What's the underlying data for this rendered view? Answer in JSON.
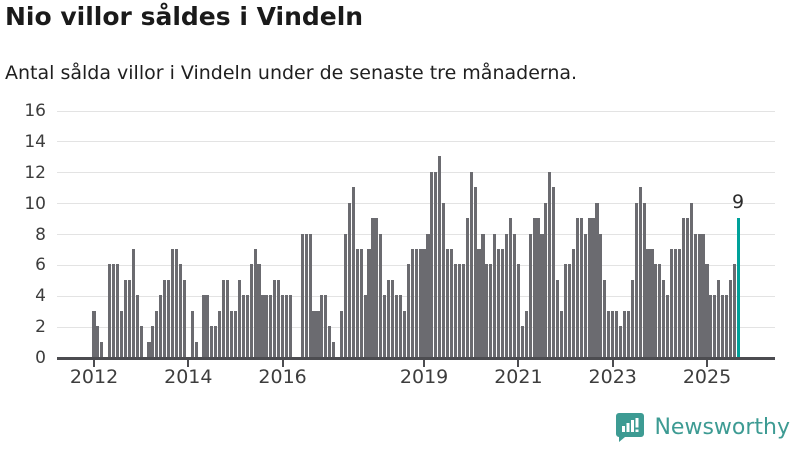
{
  "header": {
    "title": "Nio villor såldes i Vindeln",
    "subtitle": "Antal sålda villor i Vindeln under de senaste tre månaderna."
  },
  "chart_data": {
    "type": "bar",
    "title": "Nio villor såldes i Vindeln",
    "subtitle": "Antal sålda villor i Vindeln under de senaste tre månaderna.",
    "x_start": "2012-01",
    "x_end": "2025-09",
    "x_tick_years": [
      2012,
      2014,
      2016,
      2019,
      2021,
      2023,
      2025
    ],
    "x_tick_labels": [
      "2012",
      "2014",
      "2016",
      "2019",
      "2021",
      "2023",
      "2025"
    ],
    "y_ticks": [
      0,
      2,
      4,
      6,
      8,
      10,
      12,
      14,
      16
    ],
    "ylim": [
      0,
      16
    ],
    "grid": true,
    "bar_color": "#6b6b70",
    "highlight_color": "#00a19a",
    "highlight_last_bar": true,
    "last_value_label": "9",
    "values_by_year": {
      "2012": [
        3,
        2,
        1,
        0,
        6,
        6,
        6,
        3,
        5,
        5,
        7,
        4
      ],
      "2013": [
        2,
        0,
        1,
        2,
        3,
        4,
        5,
        5,
        7,
        7,
        6,
        5
      ],
      "2014": [
        0,
        3,
        1,
        0,
        4,
        4,
        2,
        2,
        3,
        5,
        5,
        3
      ],
      "2015": [
        3,
        5,
        4,
        4,
        6,
        7,
        6,
        4,
        4,
        4,
        5,
        5
      ],
      "2016": [
        4,
        4,
        4,
        0,
        0,
        8,
        8,
        8,
        3,
        3,
        4,
        4
      ],
      "2017": [
        2,
        1,
        0,
        3,
        8,
        10,
        11,
        7,
        7,
        4,
        7,
        9
      ],
      "2018": [
        9,
        8,
        4,
        5,
        5,
        4,
        4,
        3,
        6,
        7,
        7,
        7
      ],
      "2019": [
        7,
        8,
        12,
        12,
        13,
        10,
        7,
        7,
        6,
        6,
        6,
        9
      ],
      "2020": [
        12,
        11,
        7,
        8,
        6,
        6,
        8,
        7,
        7,
        8,
        9,
        8
      ],
      "2021": [
        6,
        2,
        3,
        8,
        9,
        9,
        8,
        10,
        12,
        11,
        5,
        3
      ],
      "2022": [
        6,
        6,
        7,
        9,
        9,
        8,
        9,
        9,
        10,
        8,
        5,
        3
      ],
      "2023": [
        3,
        3,
        2,
        3,
        3,
        5,
        10,
        11,
        10,
        7,
        7,
        6
      ],
      "2024": [
        6,
        5,
        4,
        7,
        7,
        7,
        9,
        9,
        10,
        8,
        8,
        8
      ],
      "2025": [
        6,
        4,
        4,
        5,
        4,
        4,
        5,
        6,
        9
      ]
    },
    "values": [
      3,
      2,
      1,
      0,
      6,
      6,
      6,
      3,
      5,
      5,
      7,
      4,
      2,
      0,
      1,
      2,
      3,
      4,
      5,
      5,
      7,
      7,
      6,
      5,
      0,
      3,
      1,
      0,
      4,
      4,
      2,
      2,
      3,
      5,
      5,
      3,
      3,
      5,
      4,
      4,
      6,
      7,
      6,
      4,
      4,
      4,
      5,
      5,
      4,
      4,
      4,
      0,
      0,
      8,
      8,
      8,
      3,
      3,
      4,
      4,
      2,
      1,
      0,
      3,
      8,
      10,
      11,
      7,
      7,
      4,
      7,
      9,
      9,
      8,
      4,
      5,
      5,
      4,
      4,
      3,
      6,
      7,
      7,
      7,
      7,
      8,
      12,
      12,
      13,
      10,
      7,
      7,
      6,
      6,
      6,
      9,
      12,
      11,
      7,
      8,
      6,
      6,
      8,
      7,
      7,
      8,
      9,
      8,
      6,
      2,
      3,
      8,
      9,
      9,
      8,
      10,
      12,
      11,
      5,
      3,
      6,
      6,
      7,
      9,
      9,
      8,
      9,
      9,
      10,
      8,
      5,
      3,
      3,
      3,
      2,
      3,
      3,
      5,
      10,
      11,
      10,
      7,
      7,
      6,
      6,
      5,
      4,
      7,
      7,
      7,
      9,
      9,
      10,
      8,
      8,
      8,
      6,
      4,
      4,
      5,
      4,
      4,
      5,
      6,
      9
    ]
  },
  "annotation": {
    "last_label": "9"
  },
  "footer": {
    "brand": "Newsworthy",
    "brand_color": "#3d9b93",
    "logo_icon": "bar-chart-speech-bubble-icon"
  },
  "colors": {
    "bar_gray": "#6b6b70",
    "highlight_teal": "#00a19a",
    "gridline": "#e3e3e3",
    "axis": "#4c4c50",
    "text_dark": "#1a1a1a"
  }
}
